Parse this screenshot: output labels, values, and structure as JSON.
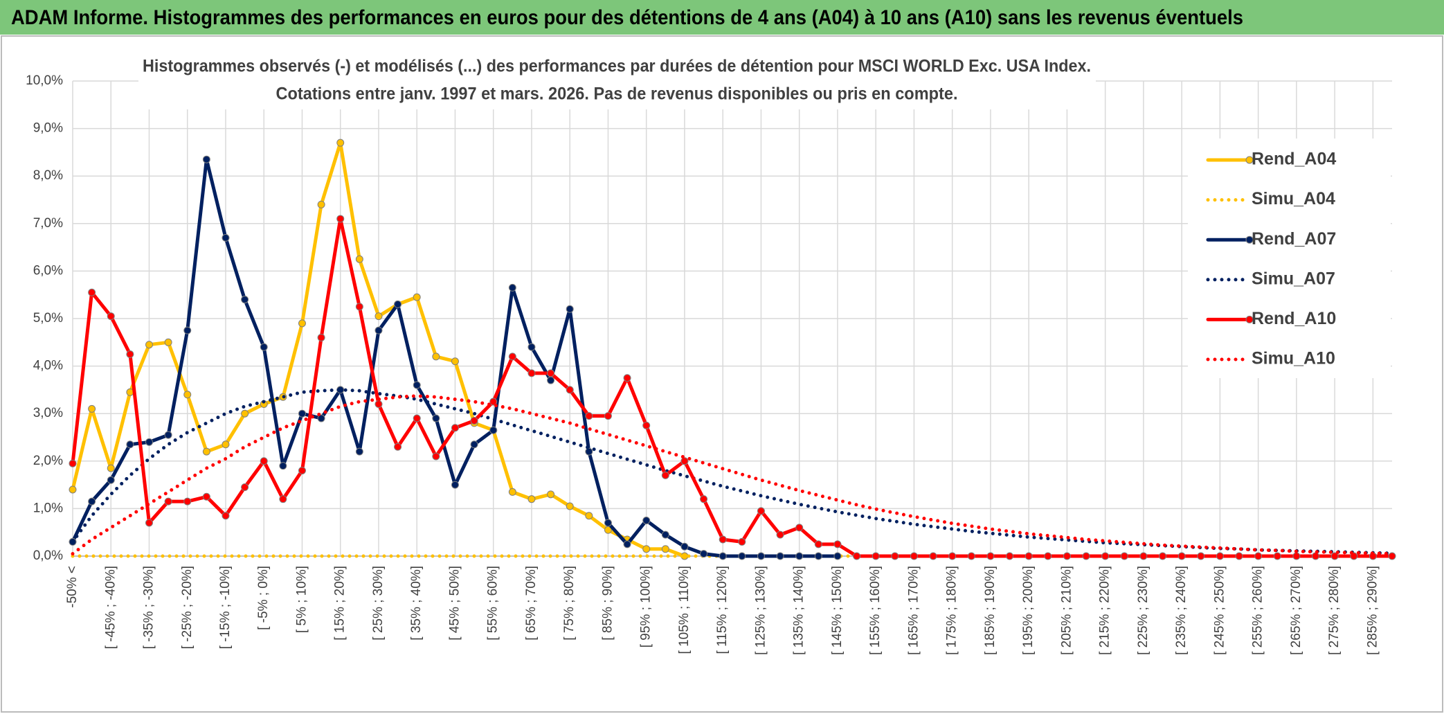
{
  "header": {
    "title": "ADAM Informe. Histogrammes des performances en euros pour des détentions de 4 ans (A04) à 10 ans (A10) sans les revenus éventuels"
  },
  "chart_data": {
    "type": "line",
    "title": "Histogrammes observés (-) et modélisés (...) des performances par durées de détention pour MSCI WORLD Exc. USA Index.",
    "subtitle": "Cotations entre janv. 1997 et mars. 2026. Pas de revenus disponibles ou pris en compte.",
    "categories": [
      "-50% <",
      null,
      "[ -45% ; -40%]",
      null,
      "[ -35% ; -30%]",
      null,
      "[ -25% ; -20%]",
      null,
      "[ -15% ; -10%]",
      null,
      "[ -5% ; 0%]",
      null,
      "[ 5% ; 10%]",
      null,
      "[ 15% ; 20%]",
      null,
      "[ 25% ; 30%]",
      null,
      "[ 35% ; 40%]",
      null,
      "[ 45% ; 50%]",
      null,
      "[ 55% ; 60%]",
      null,
      "[ 65% ; 70%]",
      null,
      "[ 75% ; 80%]",
      null,
      "[ 85% ; 90%]",
      null,
      "[ 95% ; 100%]",
      null,
      "[ 105% ; 110%]",
      null,
      "[ 115% ; 120%]",
      null,
      "[ 125% ; 130%]",
      null,
      "[ 135% ; 140%]",
      null,
      "[ 145% ; 150%]",
      null,
      "[ 155% ; 160%]",
      null,
      "[ 165% ; 170%]",
      null,
      "[ 175% ; 180%]",
      null,
      "[ 185% ; 190%]",
      null,
      "[ 195% ; 200%]",
      null,
      "[ 205% ; 210%]",
      null,
      "[ 215% ; 220%]",
      null,
      "[ 225% ; 230%]",
      null,
      "[ 235% ; 240%]",
      null,
      "[ 245% ; 250%]",
      null,
      "[ 255% ; 260%]",
      null,
      "[ 265% ; 270%]",
      null,
      "[ 275% ; 280%]",
      null,
      "[ 285% ; 290%]",
      null
    ],
    "series": [
      {
        "name": "Rend_A04",
        "color": "#FFC000",
        "line_style": "solid",
        "markers": true,
        "values": [
          1.4,
          3.1,
          1.85,
          3.45,
          4.45,
          4.5,
          3.4,
          2.2,
          2.35,
          3.0,
          3.2,
          3.35,
          4.9,
          7.4,
          8.7,
          6.25,
          5.05,
          5.3,
          5.45,
          4.2,
          4.1,
          2.8,
          2.65,
          1.35,
          1.2,
          1.3,
          1.05,
          0.85,
          0.55,
          0.35,
          0.15,
          0.15,
          0,
          null,
          null,
          null,
          null,
          null,
          null,
          null,
          null,
          null,
          null,
          null,
          null,
          null,
          null,
          null,
          null,
          null,
          null,
          null,
          null,
          null,
          null,
          null,
          null,
          null,
          null,
          null,
          null,
          null,
          null,
          null,
          null,
          null,
          null,
          null,
          null,
          null
        ]
      },
      {
        "name": "Simu_A04",
        "color": "#FFC000",
        "line_style": "dotted",
        "markers": false,
        "values": [
          0,
          0,
          0,
          0,
          0,
          0,
          0,
          0,
          0,
          0,
          0,
          0,
          0,
          0,
          0,
          0,
          0,
          0,
          0,
          0,
          0,
          0,
          0,
          0,
          0,
          0,
          0,
          0,
          0,
          0,
          0,
          0,
          0,
          0,
          0,
          0,
          0,
          0,
          0,
          0,
          0,
          0,
          0,
          0,
          0,
          0,
          0,
          0,
          0,
          0,
          0,
          0,
          0,
          0,
          0,
          0,
          0,
          0,
          0,
          0,
          0,
          0,
          0,
          0,
          0,
          0,
          0,
          0,
          0,
          0
        ]
      },
      {
        "name": "Rend_A07",
        "color": "#002060",
        "line_style": "solid",
        "markers": true,
        "values": [
          0.3,
          1.15,
          1.6,
          2.35,
          2.4,
          2.55,
          4.75,
          8.35,
          6.7,
          5.4,
          4.4,
          1.9,
          3.0,
          2.9,
          3.5,
          2.2,
          4.75,
          5.3,
          3.6,
          2.9,
          1.5,
          2.35,
          2.65,
          5.65,
          4.4,
          3.7,
          5.2,
          2.2,
          0.7,
          0.25,
          0.75,
          0.45,
          0.2,
          0.05,
          0,
          0,
          0,
          0,
          0,
          0,
          0,
          null,
          null,
          null,
          null,
          null,
          null,
          null,
          null,
          null,
          null,
          null,
          null,
          null,
          null,
          null,
          null,
          null,
          null,
          null,
          null,
          null,
          null,
          null,
          null,
          null,
          null,
          null,
          null,
          null
        ]
      },
      {
        "name": "Simu_A07",
        "color": "#002060",
        "line_style": "dotted",
        "markers": false,
        "values": [
          0.3,
          0.85,
          1.3,
          1.7,
          2.05,
          2.35,
          2.6,
          2.8,
          3.0,
          3.15,
          3.25,
          3.35,
          3.45,
          3.48,
          3.5,
          3.48,
          3.42,
          3.37,
          3.3,
          3.2,
          3.1,
          3.0,
          2.88,
          2.76,
          2.64,
          2.52,
          2.4,
          2.28,
          2.16,
          2.04,
          1.92,
          1.8,
          1.69,
          1.58,
          1.47,
          1.37,
          1.27,
          1.18,
          1.09,
          1.01,
          0.93,
          0.86,
          0.79,
          0.73,
          0.67,
          0.62,
          0.57,
          0.52,
          0.48,
          0.44,
          0.4,
          0.37,
          0.34,
          0.31,
          0.28,
          0.26,
          0.24,
          0.22,
          0.2,
          0.18,
          0.16,
          0.15,
          0.13,
          0.12,
          0.11,
          0.1,
          0.09,
          0.08,
          0.07,
          0.06
        ]
      },
      {
        "name": "Rend_A10",
        "color": "#FF0000",
        "line_style": "solid",
        "markers": true,
        "values": [
          1.95,
          5.55,
          5.05,
          4.25,
          0.7,
          1.15,
          1.15,
          1.25,
          0.85,
          1.45,
          2.0,
          1.2,
          1.8,
          4.6,
          7.1,
          5.25,
          3.2,
          2.3,
          2.9,
          2.1,
          2.7,
          2.85,
          3.25,
          4.2,
          3.85,
          3.85,
          3.5,
          2.95,
          2.95,
          3.75,
          2.75,
          1.7,
          2.0,
          1.2,
          0.35,
          0.3,
          0.95,
          0.45,
          0.6,
          0.25,
          0.25,
          0,
          0,
          0,
          0,
          0,
          0,
          0,
          0,
          0,
          0,
          0,
          0,
          0,
          0,
          0,
          0,
          0,
          0,
          0,
          0,
          0,
          0,
          0,
          0,
          0,
          0,
          0,
          0,
          0
        ]
      },
      {
        "name": "Simu_A10",
        "color": "#FF0000",
        "line_style": "dotted",
        "markers": false,
        "values": [
          0.05,
          0.35,
          0.6,
          0.85,
          1.1,
          1.35,
          1.6,
          1.85,
          2.05,
          2.3,
          2.5,
          2.7,
          2.85,
          3.0,
          3.15,
          3.25,
          3.3,
          3.35,
          3.37,
          3.35,
          3.3,
          3.25,
          3.18,
          3.1,
          3.0,
          2.9,
          2.8,
          2.68,
          2.56,
          2.44,
          2.32,
          2.2,
          2.08,
          1.96,
          1.84,
          1.72,
          1.6,
          1.49,
          1.38,
          1.28,
          1.18,
          1.08,
          0.99,
          0.91,
          0.83,
          0.76,
          0.69,
          0.63,
          0.57,
          0.52,
          0.47,
          0.43,
          0.39,
          0.35,
          0.32,
          0.29,
          0.26,
          0.23,
          0.21,
          0.19,
          0.17,
          0.15,
          0.13,
          0.12,
          0.1,
          0.09,
          0.08,
          0.07,
          0.06,
          0.05
        ]
      }
    ],
    "ylim": [
      0,
      10
    ],
    "yticks": [
      {
        "value": 0,
        "label": "0,0%"
      },
      {
        "value": 1,
        "label": "1,0%"
      },
      {
        "value": 2,
        "label": "2,0%"
      },
      {
        "value": 3,
        "label": "3,0%"
      },
      {
        "value": 4,
        "label": "4,0%"
      },
      {
        "value": 5,
        "label": "5,0%"
      },
      {
        "value": 6,
        "label": "6,0%"
      },
      {
        "value": 7,
        "label": "7,0%"
      },
      {
        "value": 8,
        "label": "8,0%"
      },
      {
        "value": 9,
        "label": "9,0%"
      },
      {
        "value": 10,
        "label": "10,0%"
      }
    ],
    "grid": true,
    "legend": "right"
  }
}
